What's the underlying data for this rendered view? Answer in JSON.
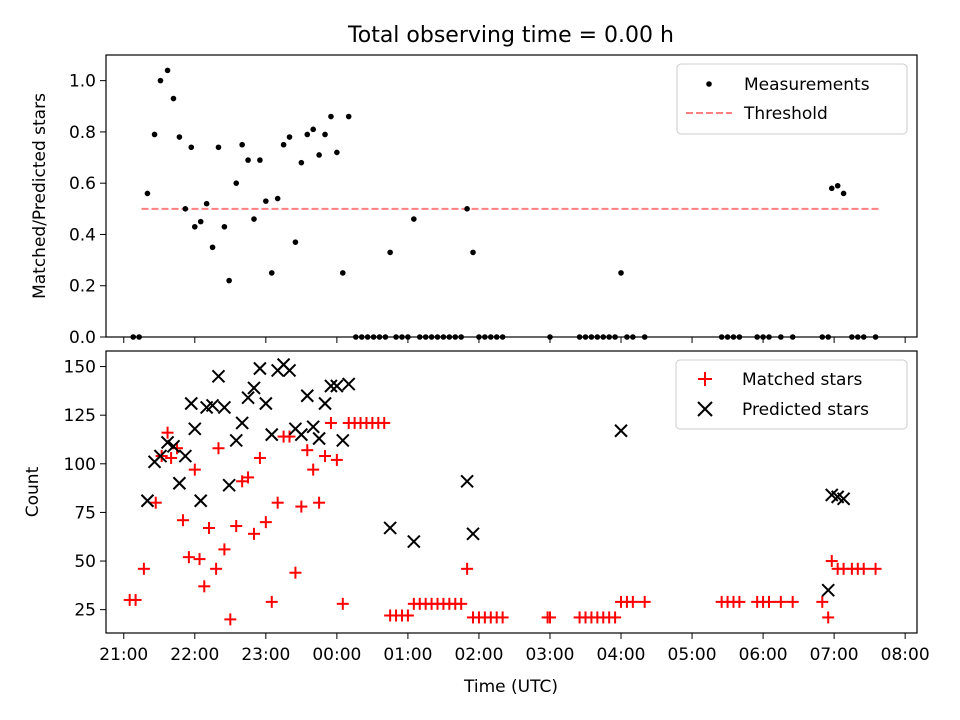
{
  "figure": {
    "title": "Total observing time = 0.00 h",
    "xlabel": "Time (UTC)"
  },
  "chart_data": [
    {
      "type": "scatter",
      "panel": "top",
      "ylabel": "Matched/Predicted stars",
      "xlim": [
        "20:45",
        "08:10"
      ],
      "ylim": [
        0,
        1.1
      ],
      "yticks": [
        0.0,
        0.2,
        0.4,
        0.6,
        0.8,
        1.0
      ],
      "ytick_labels": [
        "0.0",
        "0.2",
        "0.4",
        "0.6",
        "0.8",
        "1.0"
      ],
      "legend_position": "top-right",
      "threshold": {
        "name": "Threshold",
        "value": 0.5,
        "x_range": [
          "21:15",
          "07:40"
        ],
        "color": "#ff7f7f",
        "style": "dashed"
      },
      "series": [
        {
          "name": "Measurements",
          "color": "#000000",
          "marker": "dot",
          "points": [
            [
              "21:08",
              0
            ],
            [
              "21:13",
              0
            ],
            [
              "21:20",
              0.56
            ],
            [
              "21:26",
              0.79
            ],
            [
              "21:31",
              1.0
            ],
            [
              "21:37",
              1.04
            ],
            [
              "21:42",
              0.93
            ],
            [
              "21:47",
              0.78
            ],
            [
              "21:52",
              0.5
            ],
            [
              "21:57",
              0.74
            ],
            [
              "22:00",
              0.43
            ],
            [
              "22:05",
              0.45
            ],
            [
              "22:10",
              0.52
            ],
            [
              "22:15",
              0.35
            ],
            [
              "22:20",
              0.74
            ],
            [
              "22:25",
              0.43
            ],
            [
              "22:29",
              0.22
            ],
            [
              "22:35",
              0.6
            ],
            [
              "22:40",
              0.75
            ],
            [
              "22:45",
              0.69
            ],
            [
              "22:50",
              0.46
            ],
            [
              "22:55",
              0.69
            ],
            [
              "23:00",
              0.53
            ],
            [
              "23:05",
              0.25
            ],
            [
              "23:10",
              0.54
            ],
            [
              "23:15",
              0.75
            ],
            [
              "23:20",
              0.78
            ],
            [
              "23:25",
              0.37
            ],
            [
              "23:30",
              0.68
            ],
            [
              "23:35",
              0.79
            ],
            [
              "23:40",
              0.81
            ],
            [
              "23:45",
              0.71
            ],
            [
              "23:50",
              0.79
            ],
            [
              "23:55",
              0.86
            ],
            [
              "00:00",
              0.72
            ],
            [
              "00:05",
              0.25
            ],
            [
              "00:10",
              0.86
            ],
            [
              "00:16",
              0
            ],
            [
              "00:21",
              0
            ],
            [
              "00:26",
              0
            ],
            [
              "00:31",
              0
            ],
            [
              "00:36",
              0
            ],
            [
              "00:41",
              0
            ],
            [
              "00:45",
              0.33
            ],
            [
              "00:50",
              0
            ],
            [
              "00:55",
              0
            ],
            [
              "01:00",
              0
            ],
            [
              "01:05",
              0.46
            ],
            [
              "01:10",
              0
            ],
            [
              "01:15",
              0
            ],
            [
              "01:20",
              0
            ],
            [
              "01:25",
              0
            ],
            [
              "01:30",
              0
            ],
            [
              "01:35",
              0
            ],
            [
              "01:40",
              0
            ],
            [
              "01:45",
              0
            ],
            [
              "01:50",
              0.5
            ],
            [
              "01:55",
              0.33
            ],
            [
              "02:00",
              0
            ],
            [
              "02:05",
              0
            ],
            [
              "02:10",
              0
            ],
            [
              "02:15",
              0
            ],
            [
              "02:20",
              0
            ],
            [
              "03:00",
              0
            ],
            [
              "03:25",
              0
            ],
            [
              "03:30",
              0
            ],
            [
              "03:35",
              0
            ],
            [
              "03:40",
              0
            ],
            [
              "03:45",
              0
            ],
            [
              "03:50",
              0
            ],
            [
              "03:55",
              0
            ],
            [
              "04:00",
              0.25
            ],
            [
              "04:05",
              0
            ],
            [
              "04:10",
              0
            ],
            [
              "04:20",
              0
            ],
            [
              "05:25",
              0
            ],
            [
              "05:30",
              0
            ],
            [
              "05:35",
              0
            ],
            [
              "05:40",
              0
            ],
            [
              "05:55",
              0
            ],
            [
              "06:00",
              0
            ],
            [
              "06:05",
              0
            ],
            [
              "06:15",
              0
            ],
            [
              "06:25",
              0
            ],
            [
              "06:50",
              0
            ],
            [
              "06:55",
              0
            ],
            [
              "06:58",
              0.58
            ],
            [
              "07:03",
              0.59
            ],
            [
              "07:08",
              0.56
            ],
            [
              "07:15",
              0
            ],
            [
              "07:20",
              0
            ],
            [
              "07:25",
              0
            ],
            [
              "07:35",
              0
            ]
          ]
        }
      ]
    },
    {
      "type": "scatter",
      "panel": "bottom",
      "ylabel": "Count",
      "xlim": [
        "20:45",
        "08:10"
      ],
      "ylim": [
        13,
        158
      ],
      "yticks": [
        25,
        50,
        75,
        100,
        125,
        150
      ],
      "ytick_labels": [
        "25",
        "50",
        "75",
        "100",
        "125",
        "150"
      ],
      "xticks": [
        "21:00",
        "22:00",
        "23:00",
        "00:00",
        "01:00",
        "02:00",
        "03:00",
        "04:00",
        "05:00",
        "06:00",
        "07:00",
        "08:00"
      ],
      "xtick_labels": [
        "21:00",
        "22:00",
        "23:00",
        "00:00",
        "01:00",
        "02:00",
        "03:00",
        "04:00",
        "05:00",
        "06:00",
        "07:00",
        "08:00"
      ],
      "legend_position": "top-right",
      "series": [
        {
          "name": "Matched stars",
          "color": "#ff0000",
          "marker": "plus",
          "points": [
            [
              "21:05",
              30
            ],
            [
              "21:10",
              30
            ],
            [
              "21:17",
              46
            ],
            [
              "21:27",
              80
            ],
            [
              "21:32",
              104
            ],
            [
              "21:37",
              116
            ],
            [
              "21:40",
              103
            ],
            [
              "21:45",
              108
            ],
            [
              "21:50",
              71
            ],
            [
              "21:55",
              52
            ],
            [
              "22:00",
              97
            ],
            [
              "22:04",
              51
            ],
            [
              "22:08",
              37
            ],
            [
              "22:12",
              67
            ],
            [
              "22:18",
              46
            ],
            [
              "22:20",
              108
            ],
            [
              "22:25",
              56
            ],
            [
              "22:30",
              20
            ],
            [
              "22:35",
              68
            ],
            [
              "22:40",
              91
            ],
            [
              "22:45",
              93
            ],
            [
              "22:50",
              64
            ],
            [
              "22:55",
              103
            ],
            [
              "23:00",
              70
            ],
            [
              "23:05",
              29
            ],
            [
              "23:10",
              80
            ],
            [
              "23:15",
              114
            ],
            [
              "23:20",
              114
            ],
            [
              "23:25",
              44
            ],
            [
              "23:30",
              78
            ],
            [
              "23:35",
              107
            ],
            [
              "23:40",
              97
            ],
            [
              "23:45",
              80
            ],
            [
              "23:50",
              104
            ],
            [
              "23:55",
              121
            ],
            [
              "00:00",
              102
            ],
            [
              "00:05",
              28
            ],
            [
              "00:10",
              121
            ],
            [
              "00:15",
              121
            ],
            [
              "00:20",
              121
            ],
            [
              "00:25",
              121
            ],
            [
              "00:30",
              121
            ],
            [
              "00:35",
              121
            ],
            [
              "00:40",
              121
            ],
            [
              "00:45",
              22
            ],
            [
              "00:50",
              22
            ],
            [
              "00:55",
              22
            ],
            [
              "01:00",
              22
            ],
            [
              "01:05",
              28
            ],
            [
              "01:10",
              28
            ],
            [
              "01:15",
              28
            ],
            [
              "01:20",
              28
            ],
            [
              "01:25",
              28
            ],
            [
              "01:30",
              28
            ],
            [
              "01:35",
              28
            ],
            [
              "01:40",
              28
            ],
            [
              "01:45",
              28
            ],
            [
              "01:50",
              46
            ],
            [
              "01:55",
              21
            ],
            [
              "02:00",
              21
            ],
            [
              "02:05",
              21
            ],
            [
              "02:10",
              21
            ],
            [
              "02:15",
              21
            ],
            [
              "02:20",
              21
            ],
            [
              "02:58",
              21
            ],
            [
              "03:00",
              21
            ],
            [
              "03:25",
              21
            ],
            [
              "03:30",
              21
            ],
            [
              "03:35",
              21
            ],
            [
              "03:40",
              21
            ],
            [
              "03:45",
              21
            ],
            [
              "03:50",
              21
            ],
            [
              "03:55",
              21
            ],
            [
              "04:00",
              29
            ],
            [
              "04:05",
              29
            ],
            [
              "04:10",
              29
            ],
            [
              "04:20",
              29
            ],
            [
              "05:25",
              29
            ],
            [
              "05:30",
              29
            ],
            [
              "05:35",
              29
            ],
            [
              "05:40",
              29
            ],
            [
              "05:55",
              29
            ],
            [
              "06:00",
              29
            ],
            [
              "06:05",
              29
            ],
            [
              "06:15",
              29
            ],
            [
              "06:25",
              29
            ],
            [
              "06:50",
              29
            ],
            [
              "06:55",
              21
            ],
            [
              "06:58",
              50
            ],
            [
              "07:03",
              46
            ],
            [
              "07:08",
              46
            ],
            [
              "07:15",
              46
            ],
            [
              "07:20",
              46
            ],
            [
              "07:25",
              46
            ],
            [
              "07:35",
              46
            ]
          ]
        },
        {
          "name": "Predicted stars",
          "color": "#000000",
          "marker": "x",
          "points": [
            [
              "21:20",
              81
            ],
            [
              "21:26",
              101
            ],
            [
              "21:31",
              104
            ],
            [
              "21:37",
              111
            ],
            [
              "21:42",
              109
            ],
            [
              "21:47",
              90
            ],
            [
              "21:52",
              104
            ],
            [
              "21:57",
              131
            ],
            [
              "22:00",
              118
            ],
            [
              "22:05",
              81
            ],
            [
              "22:10",
              129
            ],
            [
              "22:15",
              130
            ],
            [
              "22:20",
              145
            ],
            [
              "22:25",
              129
            ],
            [
              "22:29",
              89
            ],
            [
              "22:35",
              112
            ],
            [
              "22:40",
              121
            ],
            [
              "22:45",
              134
            ],
            [
              "22:50",
              139
            ],
            [
              "22:55",
              149
            ],
            [
              "23:00",
              131
            ],
            [
              "23:05",
              115
            ],
            [
              "23:10",
              148
            ],
            [
              "23:15",
              151
            ],
            [
              "23:20",
              148
            ],
            [
              "23:25",
              118
            ],
            [
              "23:30",
              115
            ],
            [
              "23:35",
              135
            ],
            [
              "23:40",
              119
            ],
            [
              "23:45",
              113
            ],
            [
              "23:50",
              131
            ],
            [
              "23:55",
              140
            ],
            [
              "00:00",
              140
            ],
            [
              "00:05",
              112
            ],
            [
              "00:10",
              141
            ],
            [
              "00:45",
              67
            ],
            [
              "01:05",
              60
            ],
            [
              "01:50",
              91
            ],
            [
              "01:55",
              64
            ],
            [
              "04:00",
              117
            ],
            [
              "06:55",
              35
            ],
            [
              "06:58",
              84
            ],
            [
              "07:03",
              83
            ],
            [
              "07:08",
              82
            ]
          ]
        }
      ]
    }
  ]
}
